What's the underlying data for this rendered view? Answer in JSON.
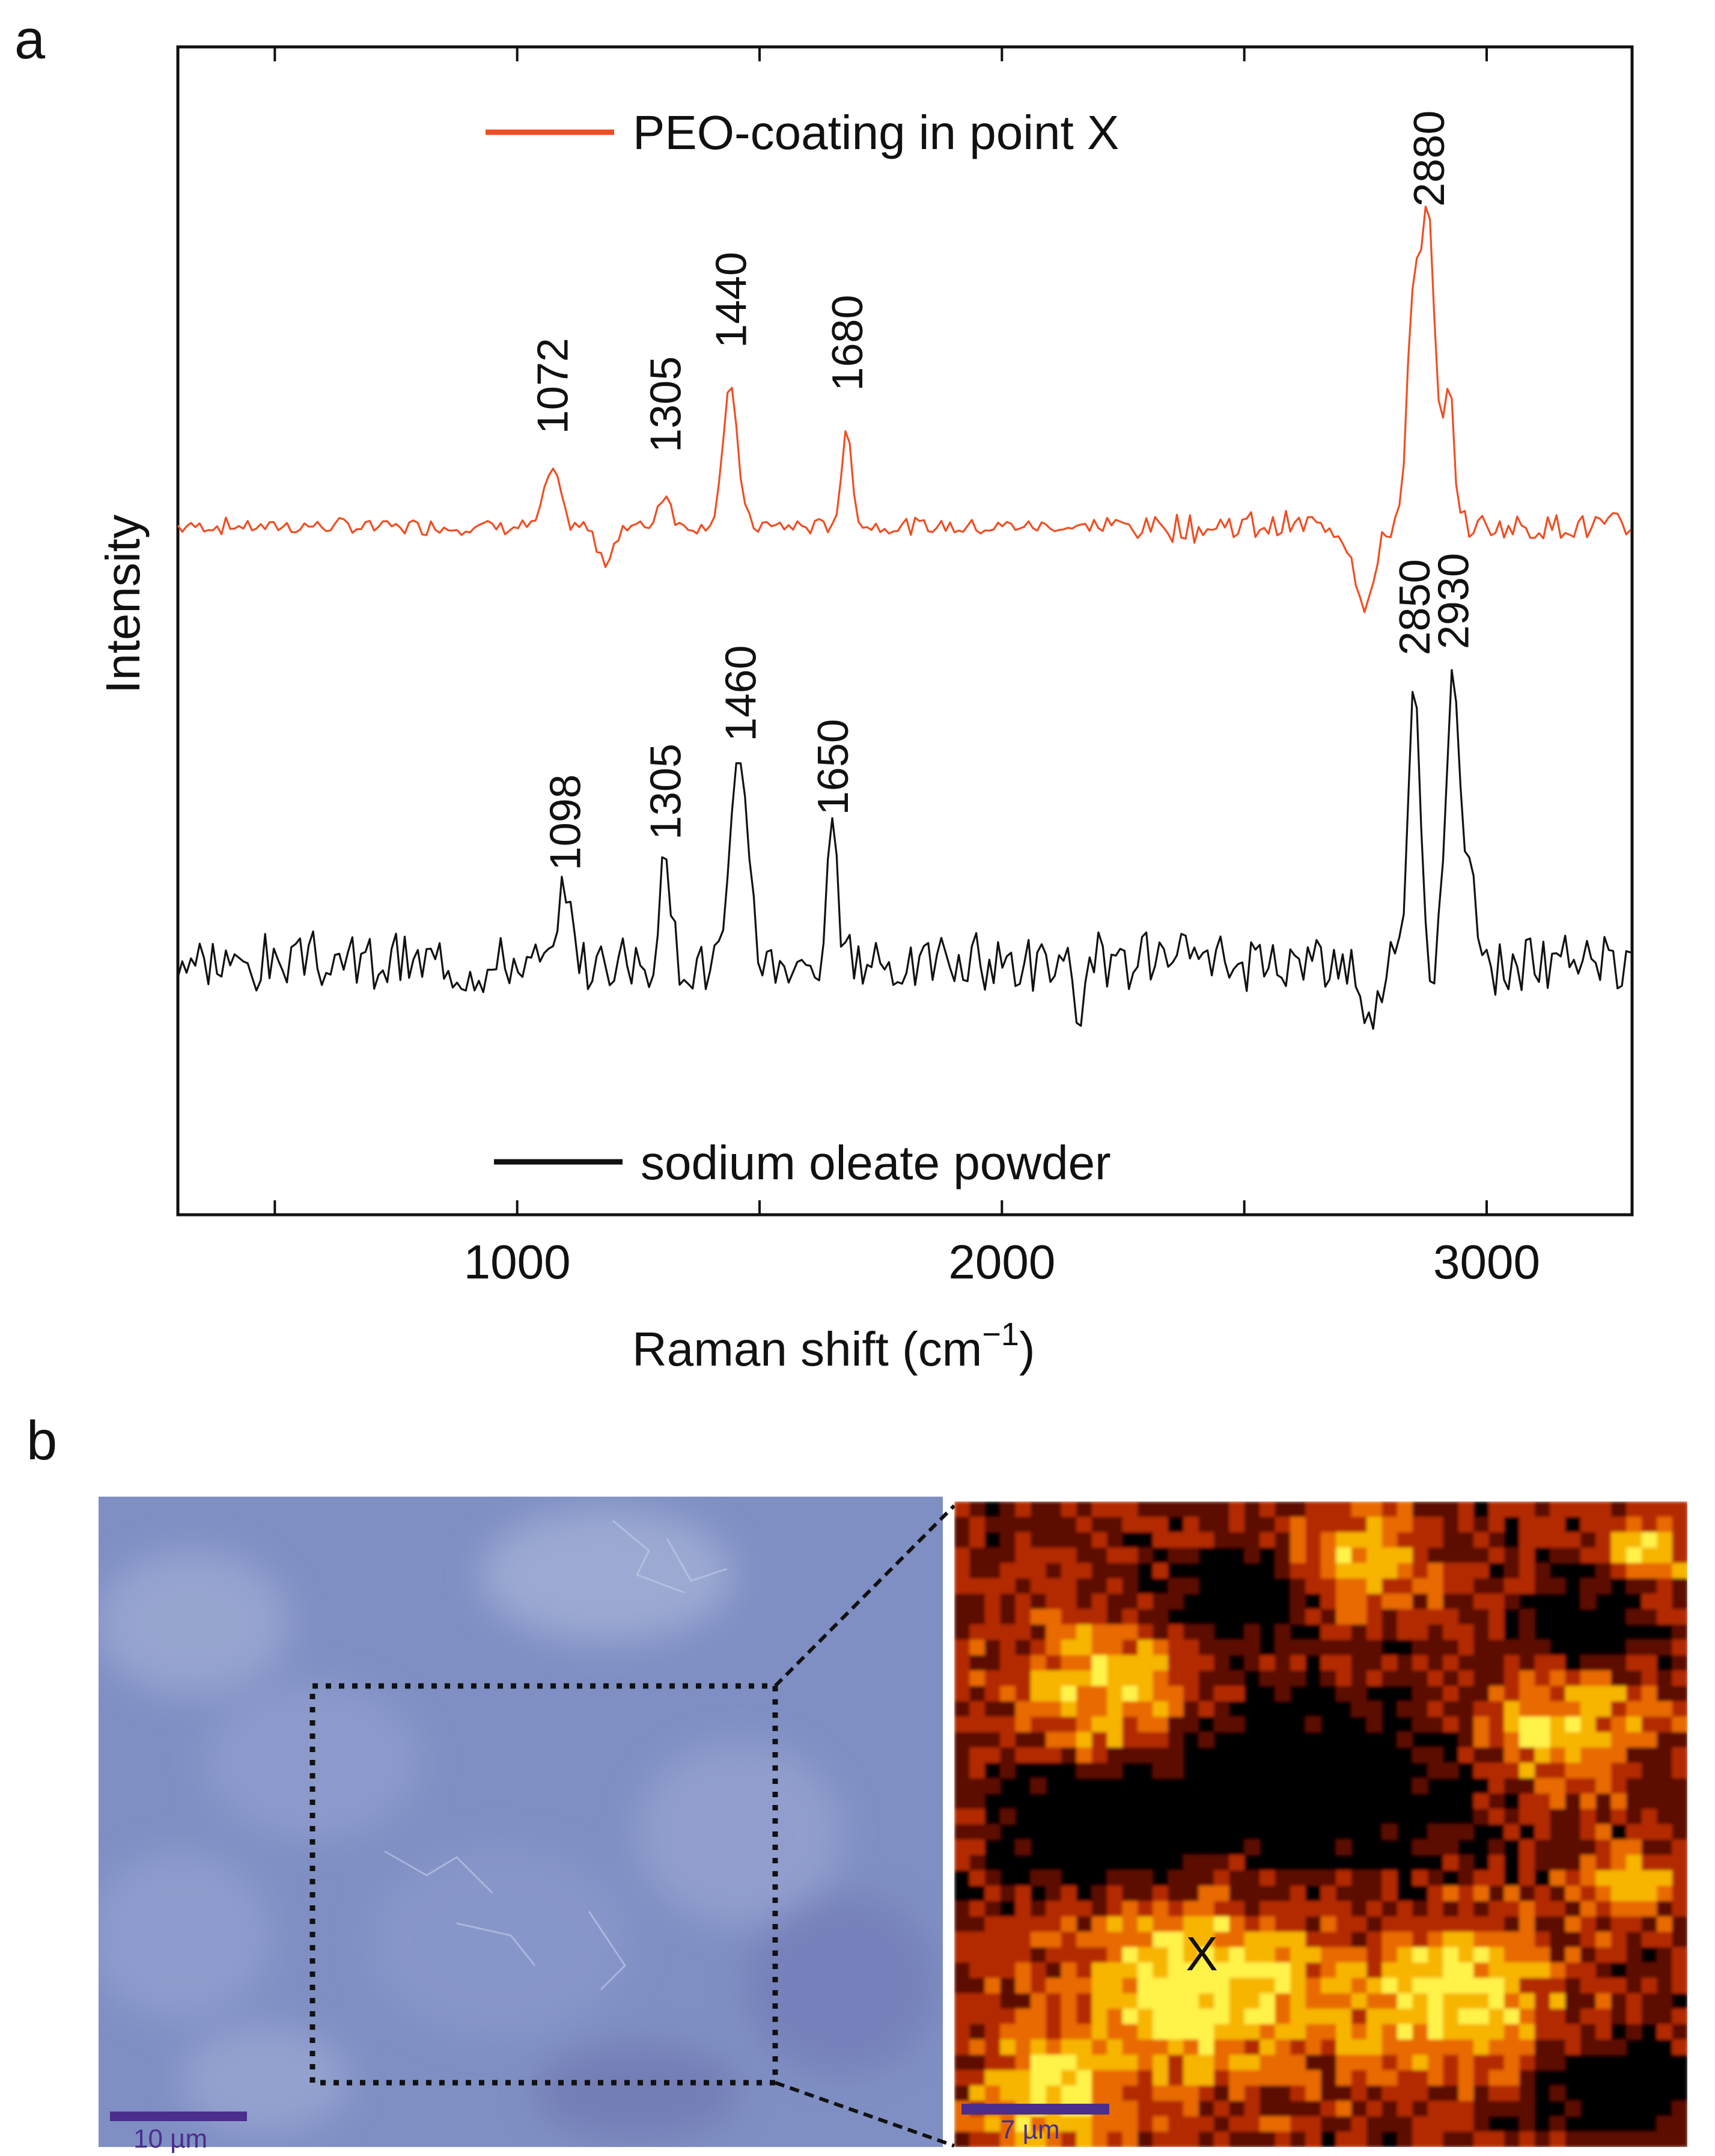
{
  "panel_labels": {
    "a": "a",
    "b": "b"
  },
  "chart_data": {
    "type": "line",
    "title": "",
    "xlabel": "Raman shift (cm",
    "xlabel_sup": "−1",
    "xlabel_close": ")",
    "ylabel": "Intensity",
    "xlim": [
      300,
      3300
    ],
    "xticks": [
      1000,
      2000,
      3000
    ],
    "xtick_labels": [
      "1000",
      "2000",
      "3000"
    ],
    "y_units": "arbitrary, offset",
    "legend": {
      "placement": "inside, top and bottom"
    },
    "series": [
      {
        "name": "PEO-coating in point X",
        "color": "#f04e23",
        "baseline": 5.6,
        "noise_amp": 0.14,
        "noise_ramp_start": 2200,
        "seed": 7,
        "peaks": [
          {
            "x": 1072,
            "height": 0.45,
            "width": 22
          },
          {
            "x": 1305,
            "height": 0.28,
            "width": 18
          },
          {
            "x": 1440,
            "height": 1.1,
            "width": 22
          },
          {
            "x": 1680,
            "height": 0.75,
            "width": 16
          },
          {
            "x": 2850,
            "height": 1.85,
            "width": 20
          },
          {
            "x": 2880,
            "height": 2.35,
            "width": 18
          },
          {
            "x": 2920,
            "height": 1.1,
            "width": 18
          }
        ],
        "dips": [
          {
            "x": 1180,
            "depth": 0.3,
            "width": 22
          },
          {
            "x": 2750,
            "depth": 0.6,
            "width": 30
          }
        ],
        "peak_labels": [
          {
            "text": "1072",
            "x": 1072,
            "y": 6.35
          },
          {
            "text": "1305",
            "x": 1305,
            "y": 6.2
          },
          {
            "text": "1440",
            "x": 1440,
            "y": 7.05
          },
          {
            "text": "1680",
            "x": 1680,
            "y": 6.7
          },
          {
            "text": "2880",
            "x": 2880,
            "y": 8.2
          }
        ]
      },
      {
        "name": "sodium oleate powder",
        "color": "#111111",
        "baseline": 2.05,
        "noise_amp": 0.28,
        "noise_ramp_start": 0,
        "seed": 3,
        "peaks": [
          {
            "x": 1098,
            "height": 0.55,
            "width": 14
          },
          {
            "x": 1305,
            "height": 0.75,
            "width": 18
          },
          {
            "x": 1460,
            "height": 1.6,
            "width": 26
          },
          {
            "x": 1650,
            "height": 1.0,
            "width": 15
          },
          {
            "x": 2850,
            "height": 2.35,
            "width": 18
          },
          {
            "x": 2930,
            "height": 2.3,
            "width": 19
          },
          {
            "x": 2965,
            "height": 0.9,
            "width": 15
          }
        ],
        "dips": [
          {
            "x": 2160,
            "depth": 0.7,
            "width": 14
          },
          {
            "x": 2760,
            "depth": 0.55,
            "width": 20
          }
        ],
        "peak_labels": [
          {
            "text": "1098",
            "x": 1098,
            "y": 2.8
          },
          {
            "text": "1305",
            "x": 1305,
            "y": 3.05
          },
          {
            "text": "1460",
            "x": 1460,
            "y": 3.85
          },
          {
            "text": "1650",
            "x": 1650,
            "y": 3.25
          },
          {
            "text": "2850",
            "x": 2850,
            "y": 4.55
          },
          {
            "text": "2930",
            "x": 2930,
            "y": 4.6
          }
        ]
      }
    ]
  },
  "micrographs": {
    "optical": {
      "scale_bar_label": "10 µm",
      "color": "#7f8fc3",
      "scale_bar_color": "#4b2e8c"
    },
    "raman_map": {
      "scale_bar_label": "7 µm",
      "marker_label": "X",
      "scale_bar_color": "#4b2e8c",
      "palette": [
        "#000000",
        "#5c0d00",
        "#b32a00",
        "#e86a00",
        "#f7b500",
        "#fff24a"
      ]
    }
  }
}
